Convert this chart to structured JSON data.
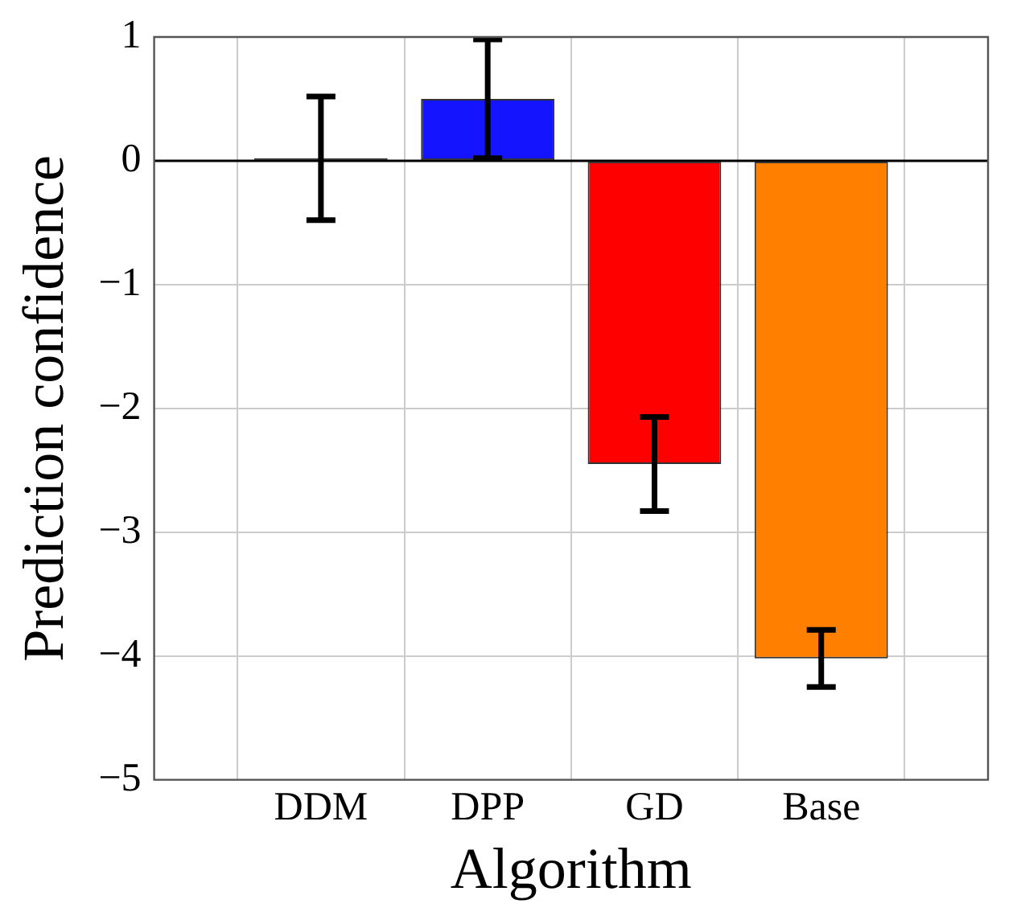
{
  "chart_data": {
    "type": "bar",
    "xlabel": "Algorithm",
    "ylabel": "Prediction confidence",
    "categories": [
      "DDM",
      "DPP",
      "GD",
      "Base"
    ],
    "values": [
      0.02,
      0.5,
      -2.45,
      -4.02
    ],
    "colors": [
      "#404040",
      "#1414ff",
      "#ff0000",
      "#ff8000"
    ],
    "errors": [
      0.5,
      0.48,
      0.38,
      0.23
    ],
    "ylim": [
      -5,
      1
    ],
    "yticks": [
      {
        "value": -5,
        "label": "−5"
      },
      {
        "value": -4,
        "label": "−4"
      },
      {
        "value": -3,
        "label": "−3"
      },
      {
        "value": -2,
        "label": "−2"
      },
      {
        "value": -1,
        "label": "−1"
      },
      0,
      1
    ],
    "grid": true,
    "legend": false
  }
}
